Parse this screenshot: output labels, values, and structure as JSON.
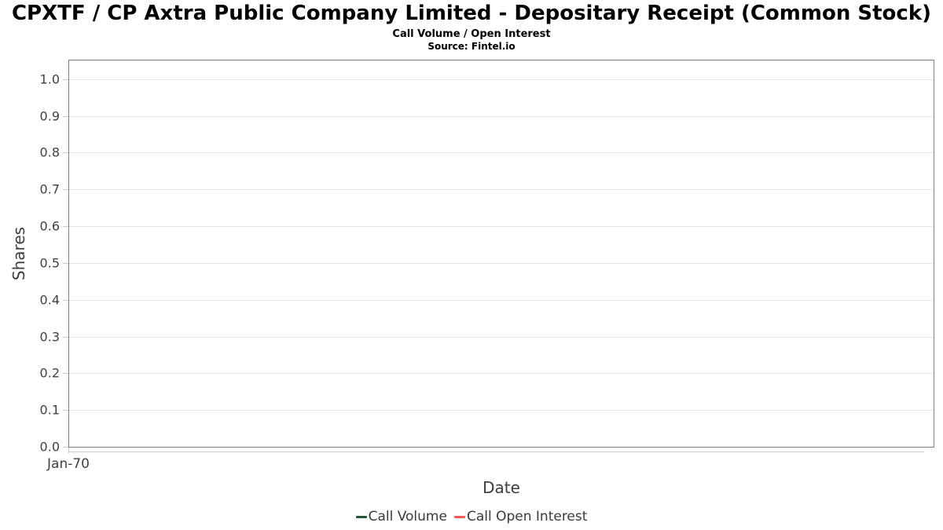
{
  "header": {
    "title": "CPXTF / CP Axtra Public Company Limited - Depositary Receipt (Common Stock)",
    "subtitle": "Call Volume / Open Interest",
    "source": "Source: Fintel.io"
  },
  "chart_data": {
    "type": "line",
    "title": "CPXTF / CP Axtra Public Company Limited - Depositary Receipt (Common Stock)",
    "subtitle": "Call Volume / Open Interest",
    "source": "Source: Fintel.io",
    "xlabel": "Date",
    "ylabel": "Shares",
    "x_ticks": [
      "Jan-70"
    ],
    "y_ticks": [
      "0.0",
      "0.1",
      "0.2",
      "0.3",
      "0.4",
      "0.5",
      "0.6",
      "0.7",
      "0.8",
      "0.9",
      "1.0"
    ],
    "ylim": [
      0,
      1.051
    ],
    "grid": "horizontal-only",
    "legend_position": "bottom-center",
    "series": [
      {
        "name": "Call Volume",
        "color": "#265638",
        "x": [],
        "values": []
      },
      {
        "name": "Call Open Interest",
        "color": "#f55b55",
        "x": [],
        "values": []
      }
    ]
  },
  "colors": {
    "plot_border": "#7e7e7e",
    "gridline": "#e5e5e5",
    "tick": "#c9c9c9",
    "tick_label": "#404040",
    "axis_title": "#3d3d3d",
    "background": "#ffffff"
  }
}
